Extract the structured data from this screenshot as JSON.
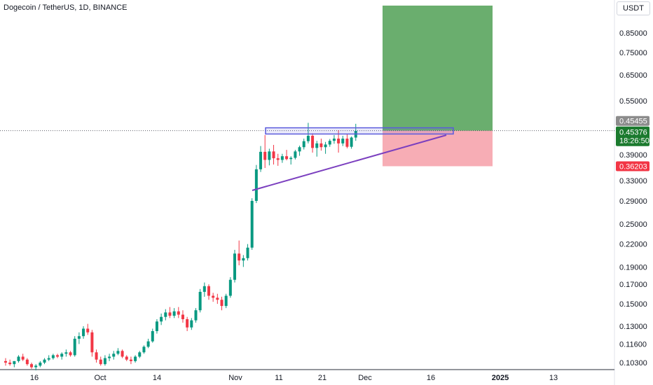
{
  "chart_title": "Dogecoin / TetherUS, 1D, BINANCE",
  "currency": "USDT",
  "price_tags": {
    "previous_close": "0.45455",
    "last_price": "0.45376",
    "countdown": "18:26:50",
    "stop_level": "0.36203"
  },
  "colors": {
    "up": "#089981",
    "down": "#f23645",
    "profit_zone": "#6aae6e",
    "loss_zone": "#f7a9b1",
    "trendline": "#7b3fbf",
    "resistance_box": "#5b5bdc",
    "last_price_tag": "#1b7a2e",
    "prev_close_tag": "#8c8c8c",
    "stop_tag": "#f23645"
  },
  "chart_data": {
    "type": "candlestick",
    "y_scale": "log",
    "ylim": [
      0.098,
      1.0
    ],
    "y_ticks": [
      "0.85000",
      "0.75000",
      "0.65000",
      "0.55000",
      "0.39000",
      "0.33000",
      "0.29000",
      "0.25000",
      "0.22000",
      "0.19000",
      "0.17000",
      "0.15000",
      "0.13000",
      "0.11600",
      "0.10300"
    ],
    "x_ticks": [
      "16",
      "Oct",
      "14",
      "Nov",
      "11",
      "21",
      "Dec",
      "16",
      "2025",
      "13"
    ],
    "candles": [
      [
        0.104,
        0.106,
        0.101,
        0.103
      ],
      [
        0.103,
        0.105,
        0.101,
        0.102
      ],
      [
        0.102,
        0.104,
        0.1,
        0.104
      ],
      [
        0.104,
        0.108,
        0.103,
        0.107
      ],
      [
        0.107,
        0.109,
        0.104,
        0.105
      ],
      [
        0.105,
        0.106,
        0.101,
        0.102
      ],
      [
        0.102,
        0.103,
        0.099,
        0.1
      ],
      [
        0.1,
        0.102,
        0.098,
        0.101
      ],
      [
        0.101,
        0.104,
        0.1,
        0.103
      ],
      [
        0.103,
        0.106,
        0.102,
        0.105
      ],
      [
        0.105,
        0.108,
        0.104,
        0.106
      ],
      [
        0.106,
        0.109,
        0.105,
        0.108
      ],
      [
        0.108,
        0.109,
        0.106,
        0.107
      ],
      [
        0.107,
        0.11,
        0.105,
        0.109
      ],
      [
        0.109,
        0.112,
        0.107,
        0.11
      ],
      [
        0.11,
        0.111,
        0.107,
        0.108
      ],
      [
        0.108,
        0.122,
        0.107,
        0.12
      ],
      [
        0.12,
        0.125,
        0.116,
        0.122
      ],
      [
        0.122,
        0.13,
        0.12,
        0.128
      ],
      [
        0.128,
        0.132,
        0.123,
        0.125
      ],
      [
        0.125,
        0.127,
        0.107,
        0.11
      ],
      [
        0.11,
        0.112,
        0.103,
        0.105
      ],
      [
        0.105,
        0.107,
        0.101,
        0.102
      ],
      [
        0.102,
        0.108,
        0.101,
        0.106
      ],
      [
        0.106,
        0.109,
        0.104,
        0.107
      ],
      [
        0.107,
        0.111,
        0.105,
        0.109
      ],
      [
        0.109,
        0.113,
        0.108,
        0.111
      ],
      [
        0.111,
        0.112,
        0.106,
        0.107
      ],
      [
        0.107,
        0.108,
        0.104,
        0.105
      ],
      [
        0.105,
        0.107,
        0.102,
        0.104
      ],
      [
        0.104,
        0.108,
        0.103,
        0.107
      ],
      [
        0.107,
        0.111,
        0.106,
        0.11
      ],
      [
        0.11,
        0.115,
        0.109,
        0.114
      ],
      [
        0.114,
        0.12,
        0.113,
        0.118
      ],
      [
        0.118,
        0.128,
        0.117,
        0.126
      ],
      [
        0.126,
        0.136,
        0.124,
        0.134
      ],
      [
        0.134,
        0.141,
        0.131,
        0.138
      ],
      [
        0.138,
        0.145,
        0.135,
        0.142
      ],
      [
        0.142,
        0.147,
        0.137,
        0.139
      ],
      [
        0.139,
        0.146,
        0.137,
        0.143
      ],
      [
        0.143,
        0.147,
        0.137,
        0.14
      ],
      [
        0.14,
        0.144,
        0.133,
        0.136
      ],
      [
        0.136,
        0.138,
        0.126,
        0.129
      ],
      [
        0.129,
        0.137,
        0.127,
        0.135
      ],
      [
        0.135,
        0.146,
        0.133,
        0.144
      ],
      [
        0.144,
        0.165,
        0.142,
        0.162
      ],
      [
        0.162,
        0.172,
        0.157,
        0.168
      ],
      [
        0.168,
        0.17,
        0.154,
        0.158
      ],
      [
        0.158,
        0.161,
        0.152,
        0.156
      ],
      [
        0.156,
        0.16,
        0.15,
        0.154
      ],
      [
        0.154,
        0.157,
        0.144,
        0.148
      ],
      [
        0.148,
        0.16,
        0.146,
        0.158
      ],
      [
        0.158,
        0.178,
        0.156,
        0.175
      ],
      [
        0.175,
        0.212,
        0.172,
        0.207
      ],
      [
        0.207,
        0.225,
        0.192,
        0.198
      ],
      [
        0.198,
        0.205,
        0.19,
        0.201
      ],
      [
        0.201,
        0.22,
        0.198,
        0.215
      ],
      [
        0.215,
        0.295,
        0.212,
        0.29
      ],
      [
        0.29,
        0.365,
        0.286,
        0.355
      ],
      [
        0.355,
        0.412,
        0.349,
        0.397
      ],
      [
        0.397,
        0.442,
        0.358,
        0.377
      ],
      [
        0.377,
        0.405,
        0.364,
        0.398
      ],
      [
        0.398,
        0.415,
        0.366,
        0.381
      ],
      [
        0.381,
        0.392,
        0.363,
        0.377
      ],
      [
        0.377,
        0.392,
        0.37,
        0.386
      ],
      [
        0.386,
        0.402,
        0.376,
        0.379
      ],
      [
        0.379,
        0.386,
        0.366,
        0.382
      ],
      [
        0.382,
        0.402,
        0.378,
        0.398
      ],
      [
        0.398,
        0.413,
        0.387,
        0.409
      ],
      [
        0.409,
        0.432,
        0.403,
        0.425
      ],
      [
        0.425,
        0.478,
        0.419,
        0.44
      ],
      [
        0.44,
        0.447,
        0.395,
        0.407
      ],
      [
        0.407,
        0.426,
        0.385,
        0.419
      ],
      [
        0.419,
        0.432,
        0.4,
        0.409
      ],
      [
        0.409,
        0.423,
        0.392,
        0.416
      ],
      [
        0.416,
        0.431,
        0.41,
        0.426
      ],
      [
        0.426,
        0.442,
        0.418,
        0.432
      ],
      [
        0.432,
        0.456,
        0.395,
        0.419
      ],
      [
        0.419,
        0.44,
        0.412,
        0.432
      ],
      [
        0.432,
        0.444,
        0.406,
        0.41
      ],
      [
        0.41,
        0.438,
        0.405,
        0.435
      ],
      [
        0.435,
        0.475,
        0.426,
        0.454
      ]
    ],
    "dates_note": "",
    "trendline": {
      "from": [
        0,
        0
      ],
      "to": [
        0,
        0
      ]
    },
    "long_position": {
      "entry": 0.45455,
      "target": 1.0,
      "stop": 0.36203
    },
    "resistance_box": {
      "low": 0.445,
      "high": 0.463
    },
    "grid": false
  }
}
